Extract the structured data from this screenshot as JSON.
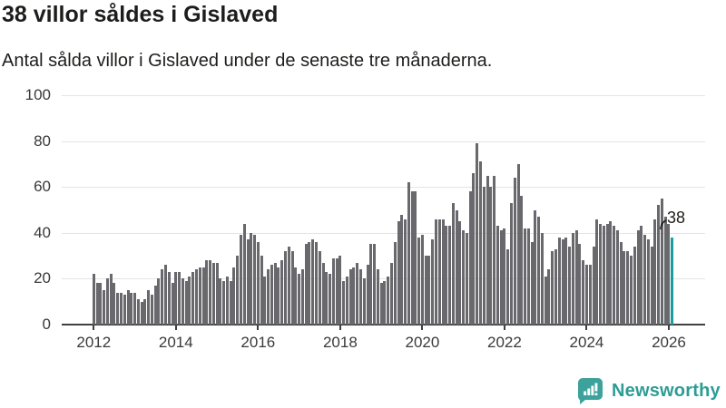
{
  "header": {
    "title": "38 villor såldes i Gislaved",
    "subtitle": "Antal sålda villor i Gislaved under de senaste tre månaderna."
  },
  "annotation": {
    "last_value_label": "38"
  },
  "branding": {
    "name": "Newsworthy",
    "icon": "newsworthy-speech-bubble-chart-icon",
    "icon_color": "#3da29b",
    "text_color": "#2d9c95"
  },
  "colors": {
    "bar": "#68686d",
    "highlight": "#1a9d9b",
    "gridline": "#e4e4e4",
    "axis": "#404040",
    "text": "#1d1d1b",
    "tick_label": "#3a3a3a"
  },
  "chart_data": {
    "type": "bar",
    "title": "38 villor såldes i Gislaved",
    "subtitle": "Antal sålda villor i Gislaved under de senaste tre månaderna.",
    "xlabel": "",
    "ylabel": "",
    "ylim": [
      0,
      100
    ],
    "y_ticks": [
      0,
      20,
      40,
      60,
      80,
      100
    ],
    "grid": "horizontal",
    "legend": "none",
    "x_start": "2012-01",
    "x_end": "2026-02",
    "x_step": "1 month",
    "x_tick_labels": [
      "2012",
      "2014",
      "2016",
      "2018",
      "2020",
      "2022",
      "2024",
      "2026"
    ],
    "x_tick_month_interval": 24,
    "highlight_last_bar": true,
    "last_bar_value": 38,
    "values": [
      22,
      18,
      18,
      15,
      20,
      22,
      18,
      14,
      14,
      13,
      15,
      14,
      14,
      11,
      10,
      11,
      15,
      13,
      17,
      20,
      24,
      26,
      23,
      18,
      23,
      23,
      20,
      19,
      21,
      23,
      24,
      25,
      25,
      28,
      28,
      27,
      27,
      20,
      19,
      21,
      19,
      25,
      30,
      39,
      44,
      37,
      40,
      39,
      36,
      30,
      21,
      24,
      26,
      27,
      25,
      28,
      32,
      34,
      32,
      25,
      22,
      24,
      35,
      36,
      37,
      36,
      32,
      27,
      23,
      22,
      29,
      29,
      30,
      19,
      21,
      24,
      25,
      27,
      24,
      20,
      26,
      35,
      35,
      24,
      18,
      19,
      21,
      27,
      36,
      45,
      48,
      46,
      62,
      58,
      58,
      38,
      39,
      30,
      30,
      37,
      46,
      46,
      46,
      43,
      43,
      53,
      50,
      45,
      41,
      40,
      58,
      66,
      79,
      71,
      60,
      65,
      60,
      65,
      43,
      41,
      42,
      33,
      53,
      64,
      70,
      56,
      42,
      42,
      36,
      50,
      47,
      40,
      21,
      24,
      32,
      33,
      38,
      37,
      38,
      34,
      40,
      41,
      35,
      28,
      26,
      26,
      34,
      46,
      44,
      43,
      44,
      45,
      43,
      41,
      36,
      32,
      32,
      30,
      34,
      41,
      43,
      39,
      37,
      34,
      46,
      52,
      55,
      47,
      44,
      38
    ]
  }
}
